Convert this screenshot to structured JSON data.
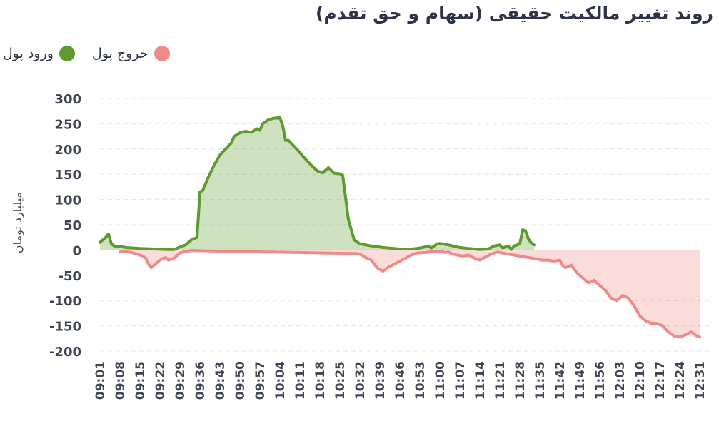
{
  "title": "روند تغییر مالکیت حقیقی (سهام و حق تقدم)",
  "legend": [
    {
      "label": "ورود پول",
      "color": "#5e9a2e"
    },
    {
      "label": "خروج پول",
      "color": "#ee8a89"
    }
  ],
  "chart_data": {
    "type": "area",
    "title": "روند تغییر مالکیت حقیقی (سهام و حق تقدم)",
    "ylabel": "میلیارد تومان",
    "xlabel": "",
    "ylim": [
      -200,
      300
    ],
    "yticks": [
      300,
      250,
      200,
      150,
      100,
      50,
      0,
      -50,
      -100,
      -150,
      -200
    ],
    "grid": true,
    "legend_position": "top-left",
    "x_labels": [
      "09:01",
      "09:08",
      "09:15",
      "09:22",
      "09:29",
      "09:36",
      "09:43",
      "09:50",
      "09:57",
      "10:04",
      "10:11",
      "10:18",
      "10:25",
      "10:32",
      "10:39",
      "10:46",
      "10:53",
      "11:00",
      "11:07",
      "11:14",
      "11:21",
      "11:28",
      "11:35",
      "11:42",
      "11:49",
      "11:56",
      "12:03",
      "12:10",
      "12:17",
      "12:24",
      "12:31"
    ],
    "series": [
      {
        "name": "ورود پول",
        "color": "#5e9a2e",
        "points": [
          [
            "09:01",
            15
          ],
          [
            "09:03",
            25
          ],
          [
            "09:04",
            32
          ],
          [
            "09:05",
            12
          ],
          [
            "09:06",
            8
          ],
          [
            "09:08",
            7
          ],
          [
            "09:10",
            5
          ],
          [
            "09:15",
            3
          ],
          [
            "09:20",
            2
          ],
          [
            "09:25",
            1
          ],
          [
            "09:27",
            1
          ],
          [
            "09:29",
            6
          ],
          [
            "09:31",
            10
          ],
          [
            "09:33",
            20
          ],
          [
            "09:35",
            25
          ],
          [
            "09:36",
            115
          ],
          [
            "09:37",
            118
          ],
          [
            "09:39",
            145
          ],
          [
            "09:41",
            168
          ],
          [
            "09:43",
            188
          ],
          [
            "09:45",
            200
          ],
          [
            "09:47",
            212
          ],
          [
            "09:48",
            225
          ],
          [
            "09:50",
            232
          ],
          [
            "09:52",
            235
          ],
          [
            "09:54",
            233
          ],
          [
            "09:56",
            240
          ],
          [
            "09:57",
            237
          ],
          [
            "09:58",
            250
          ],
          [
            "10:00",
            258
          ],
          [
            "10:02",
            261
          ],
          [
            "10:04",
            262
          ],
          [
            "10:05",
            246
          ],
          [
            "10:06",
            217
          ],
          [
            "10:07",
            217
          ],
          [
            "10:09",
            205
          ],
          [
            "10:11",
            193
          ],
          [
            "10:13",
            180
          ],
          [
            "10:15",
            168
          ],
          [
            "10:17",
            157
          ],
          [
            "10:19",
            153
          ],
          [
            "10:21",
            163
          ],
          [
            "10:23",
            152
          ],
          [
            "10:25",
            151
          ],
          [
            "10:26",
            148
          ],
          [
            "10:28",
            60
          ],
          [
            "10:30",
            20
          ],
          [
            "10:32",
            12
          ],
          [
            "10:36",
            8
          ],
          [
            "10:40",
            5
          ],
          [
            "10:46",
            2
          ],
          [
            "10:50",
            2
          ],
          [
            "10:52",
            3
          ],
          [
            "10:54",
            5
          ],
          [
            "10:56",
            8
          ],
          [
            "10:57",
            4
          ],
          [
            "10:59",
            12
          ],
          [
            "11:00",
            13
          ],
          [
            "11:03",
            10
          ],
          [
            "11:07",
            5
          ],
          [
            "11:10",
            3
          ],
          [
            "11:14",
            1
          ],
          [
            "11:17",
            2
          ],
          [
            "11:19",
            8
          ],
          [
            "11:21",
            10
          ],
          [
            "11:22",
            4
          ],
          [
            "11:24",
            8
          ],
          [
            "11:25",
            1
          ],
          [
            "11:26",
            8
          ],
          [
            "11:28",
            12
          ],
          [
            "11:29",
            40
          ],
          [
            "11:30",
            38
          ],
          [
            "11:31",
            22
          ],
          [
            "11:32",
            14
          ],
          [
            "11:33",
            10
          ]
        ]
      },
      {
        "name": "خروج پول",
        "color": "#ee8a89",
        "points": [
          [
            "09:08",
            -4
          ],
          [
            "09:10",
            -3
          ],
          [
            "09:12",
            -5
          ],
          [
            "09:14",
            -8
          ],
          [
            "09:16",
            -12
          ],
          [
            "09:17",
            -16
          ],
          [
            "09:18",
            -28
          ],
          [
            "09:19",
            -35
          ],
          [
            "09:20",
            -30
          ],
          [
            "09:21",
            -25
          ],
          [
            "09:22",
            -20
          ],
          [
            "09:23",
            -17
          ],
          [
            "09:24",
            -15
          ],
          [
            "09:25",
            -20
          ],
          [
            "09:27",
            -16
          ],
          [
            "09:29",
            -6
          ],
          [
            "09:31",
            -3
          ],
          [
            "09:33",
            -1
          ],
          [
            "09:40",
            -2
          ],
          [
            "09:50",
            -3
          ],
          [
            "10:00",
            -4
          ],
          [
            "10:10",
            -5
          ],
          [
            "10:20",
            -6
          ],
          [
            "10:31",
            -7
          ],
          [
            "10:32",
            -8
          ],
          [
            "10:34",
            -15
          ],
          [
            "10:36",
            -20
          ],
          [
            "10:38",
            -35
          ],
          [
            "10:40",
            -42
          ],
          [
            "10:42",
            -34
          ],
          [
            "10:44",
            -28
          ],
          [
            "10:46",
            -22
          ],
          [
            "10:48",
            -16
          ],
          [
            "10:50",
            -10
          ],
          [
            "10:52",
            -6
          ],
          [
            "10:55",
            -5
          ],
          [
            "10:58",
            -3
          ],
          [
            "11:00",
            -3
          ],
          [
            "11:02",
            -5
          ],
          [
            "11:03",
            -4
          ],
          [
            "11:04",
            -7
          ],
          [
            "11:06",
            -10
          ],
          [
            "11:08",
            -12
          ],
          [
            "11:10",
            -10
          ],
          [
            "11:12",
            -16
          ],
          [
            "11:14",
            -20
          ],
          [
            "11:16",
            -14
          ],
          [
            "11:18",
            -8
          ],
          [
            "11:20",
            -4
          ],
          [
            "11:24",
            -8
          ],
          [
            "11:28",
            -12
          ],
          [
            "11:32",
            -16
          ],
          [
            "11:36",
            -20
          ],
          [
            "11:38",
            -20
          ],
          [
            "11:40",
            -22
          ],
          [
            "11:42",
            -20
          ],
          [
            "11:43",
            -30
          ],
          [
            "11:44",
            -35
          ],
          [
            "11:46",
            -30
          ],
          [
            "11:48",
            -45
          ],
          [
            "11:50",
            -55
          ],
          [
            "11:52",
            -65
          ],
          [
            "11:54",
            -60
          ],
          [
            "11:56",
            -70
          ],
          [
            "11:58",
            -80
          ],
          [
            "12:00",
            -95
          ],
          [
            "12:02",
            -100
          ],
          [
            "12:04",
            -90
          ],
          [
            "12:06",
            -95
          ],
          [
            "12:08",
            -110
          ],
          [
            "12:10",
            -130
          ],
          [
            "12:12",
            -140
          ],
          [
            "12:14",
            -145
          ],
          [
            "12:16",
            -145
          ],
          [
            "12:18",
            -150
          ],
          [
            "12:20",
            -162
          ],
          [
            "12:22",
            -170
          ],
          [
            "12:24",
            -172
          ],
          [
            "12:26",
            -168
          ],
          [
            "12:28",
            -162
          ],
          [
            "12:30",
            -170
          ],
          [
            "12:31",
            -172
          ]
        ]
      }
    ]
  }
}
